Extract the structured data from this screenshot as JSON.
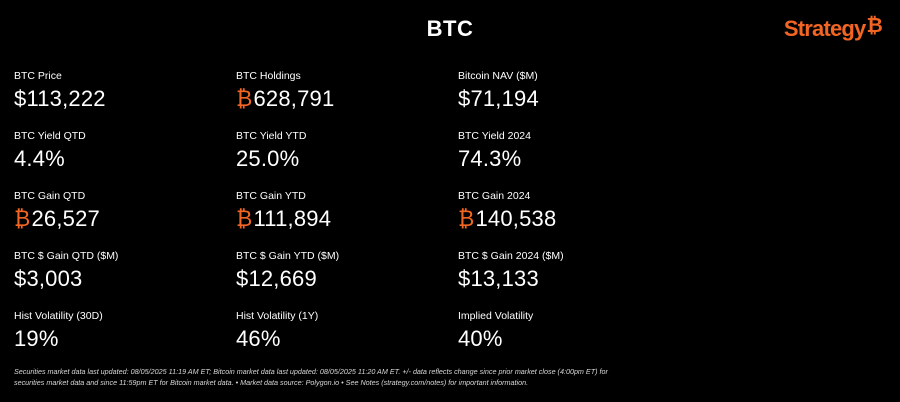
{
  "header": {
    "title": "BTC",
    "brand_text": "Strategy",
    "brand_mark": "₿"
  },
  "colors": {
    "background": "#000000",
    "text": "#ffffff",
    "accent": "#f26522"
  },
  "metrics": [
    [
      {
        "label": "BTC Price",
        "prefix": "$",
        "value": "113,222"
      },
      {
        "label": "BTC Yield QTD",
        "prefix": "",
        "value": "4.4%"
      },
      {
        "label": "BTC Gain QTD",
        "prefix": "₿",
        "value": "26,527"
      },
      {
        "label": "BTC $ Gain QTD ($M)",
        "prefix": "$",
        "value": "3,003"
      },
      {
        "label": "Hist Volatility (30D)",
        "prefix": "",
        "value": "19%"
      }
    ],
    [
      {
        "label": "BTC Holdings",
        "prefix": "₿",
        "value": "628,791"
      },
      {
        "label": "BTC Yield YTD",
        "prefix": "",
        "value": "25.0%"
      },
      {
        "label": "BTC Gain YTD",
        "prefix": "₿",
        "value": "111,894"
      },
      {
        "label": "BTC $ Gain YTD ($M)",
        "prefix": "$",
        "value": "12,669"
      },
      {
        "label": "Hist Volatility (1Y)",
        "prefix": "",
        "value": "46%"
      }
    ],
    [
      {
        "label": "Bitcoin NAV ($M)",
        "prefix": "$",
        "value": "71,194"
      },
      {
        "label": "BTC Yield 2024",
        "prefix": "",
        "value": "74.3%"
      },
      {
        "label": "BTC Gain 2024",
        "prefix": "₿",
        "value": "140,538"
      },
      {
        "label": "BTC $ Gain 2024 ($M)",
        "prefix": "$",
        "value": "13,133"
      },
      {
        "label": "Implied Volatility",
        "prefix": "",
        "value": "40%"
      }
    ]
  ],
  "footnote": {
    "line1": "Securities market data last updated: 08/05/2025 11:19 AM ET; Bitcoin market data last updated: 08/05/2025 11:20 AM ET.  +/- data reflects change since prior market close (4:00pm ET) for",
    "line2": "securities market data and since 11:59pm ET for Bitcoin market data.   •   Market data source: Polygon.io   •   See Notes (strategy.com/notes) for important information."
  }
}
